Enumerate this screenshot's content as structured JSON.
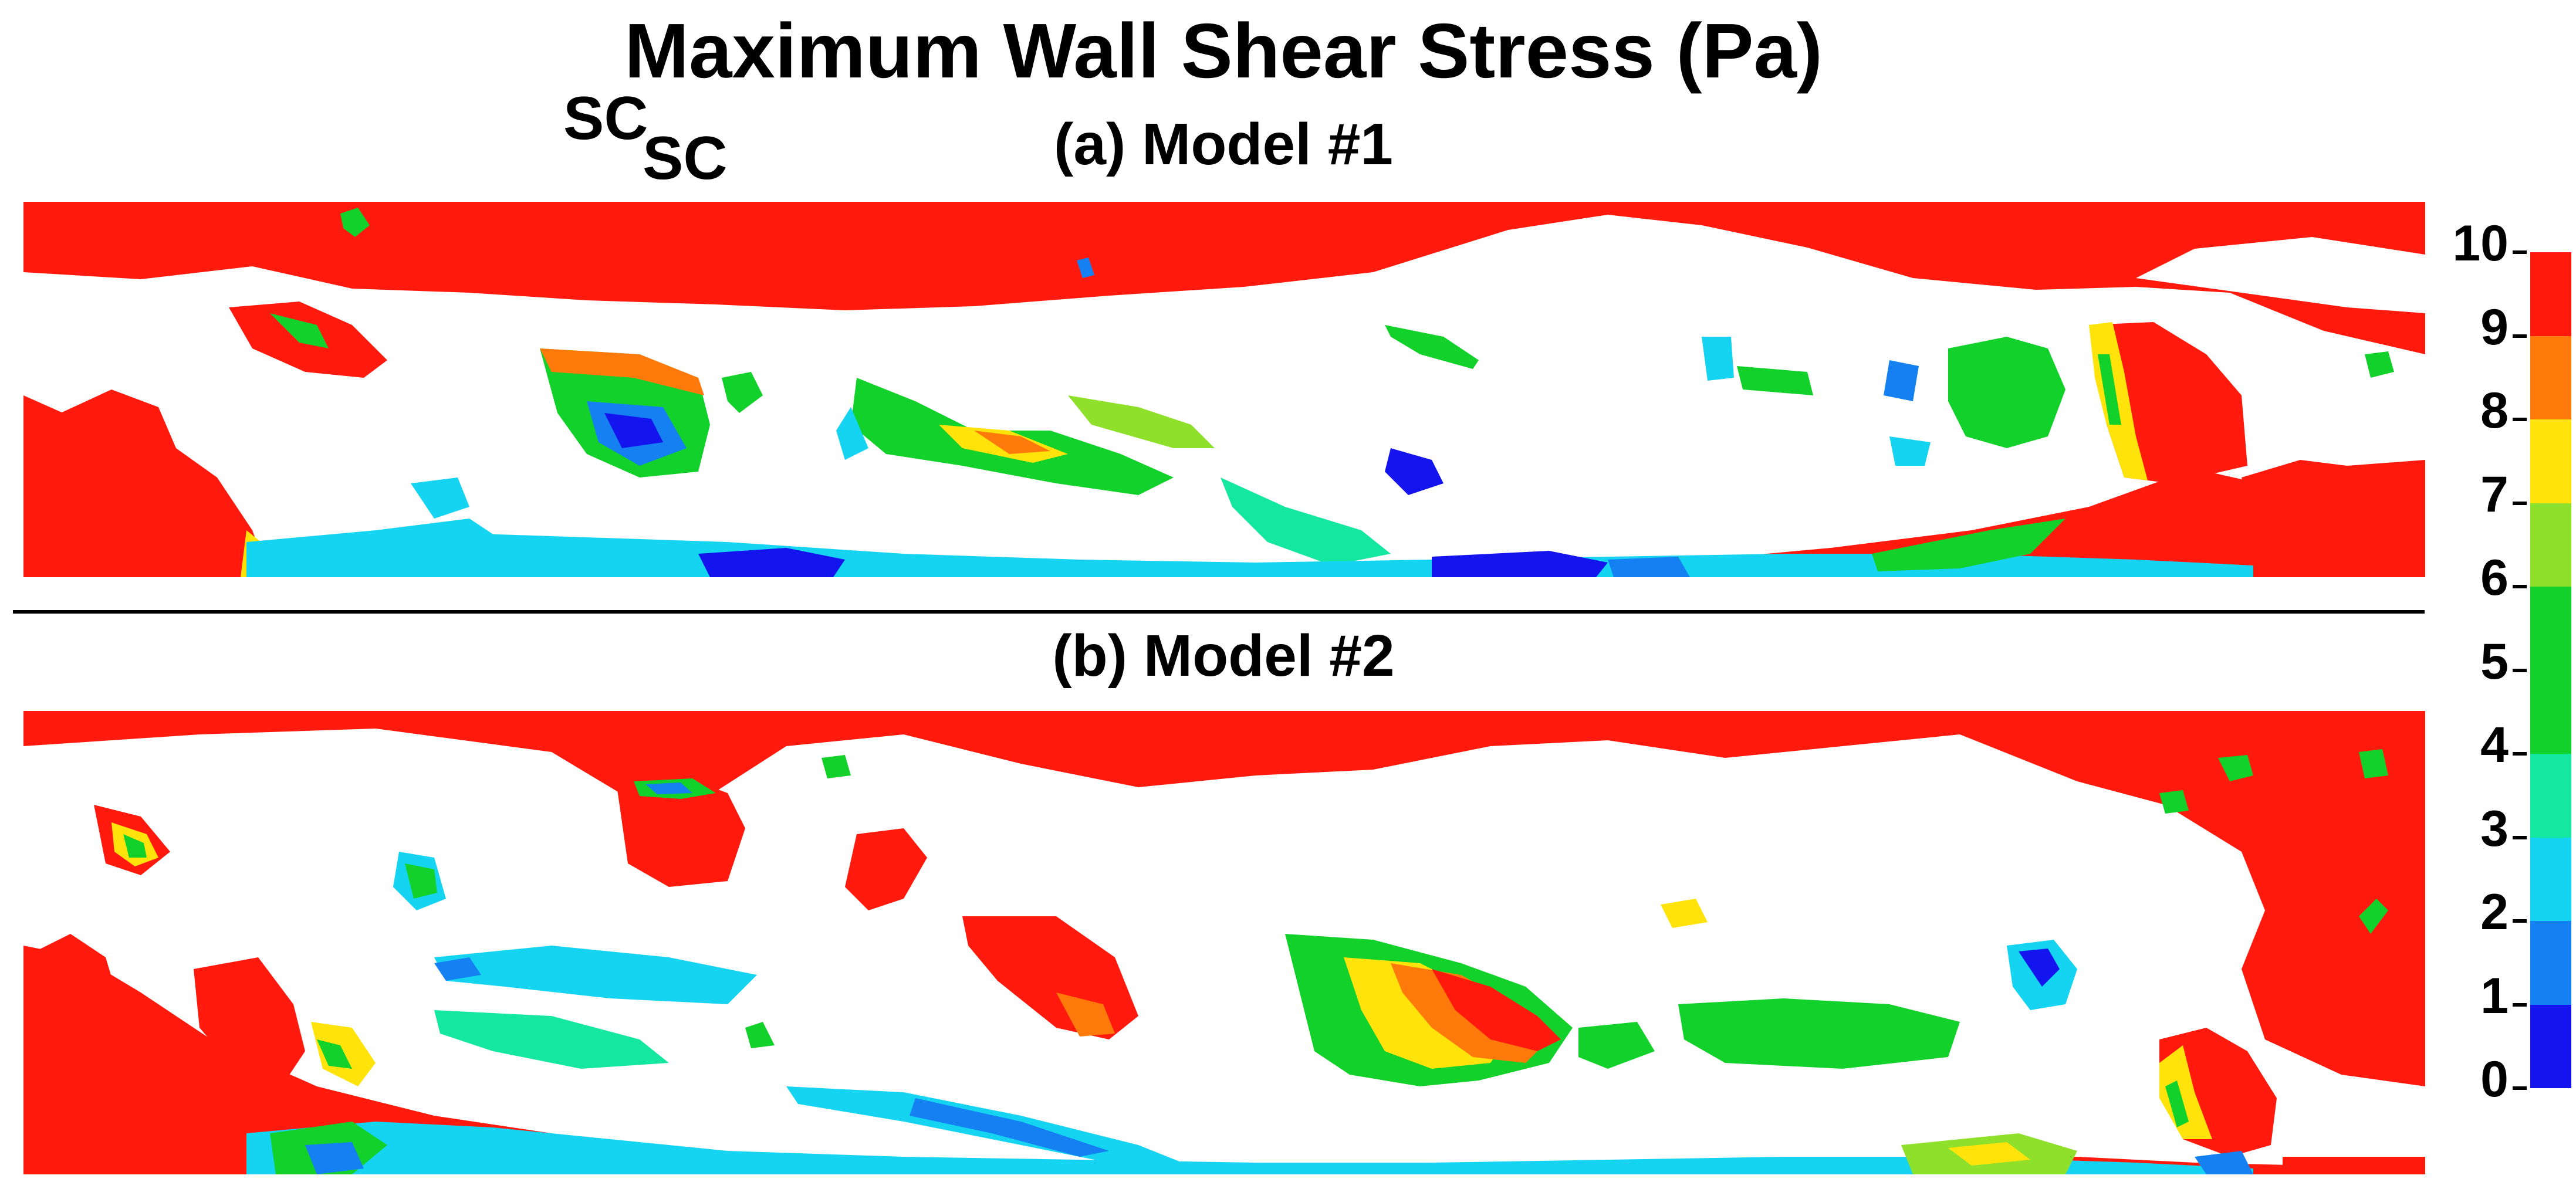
{
  "title": "Maximum Wall Shear Stress (Pa)",
  "panels": [
    {
      "label": "(a) Model #1",
      "marker": "SC"
    },
    {
      "label": "(b) Model #2",
      "marker": "SC"
    }
  ],
  "colorbar": {
    "min": 0,
    "max": 10,
    "tick_labels": [
      "10",
      "9",
      "8",
      "7",
      "6",
      "5",
      "4",
      "3",
      "2",
      "1",
      "0"
    ],
    "bands_top_to_bottom": [
      {
        "range": [
          9,
          10
        ],
        "color": "#ff1a0d"
      },
      {
        "range": [
          8,
          9
        ],
        "color": "#ff7a0a"
      },
      {
        "range": [
          7,
          8
        ],
        "color": "#ffe30a"
      },
      {
        "range": [
          6,
          7
        ],
        "color": "#8fe02a"
      },
      {
        "range": [
          4,
          6
        ],
        "color": "#12d12a"
      },
      {
        "range": [
          3,
          4
        ],
        "color": "#14e8a0"
      },
      {
        "range": [
          2,
          3
        ],
        "color": "#14d4f2"
      },
      {
        "range": [
          1,
          2
        ],
        "color": "#1480f2"
      },
      {
        "range": [
          0,
          1
        ],
        "color": "#1414ee"
      }
    ]
  },
  "colors": {
    "pore_space": "#ffffff",
    "high_stress": "#ff1a0d",
    "text": "#000000"
  }
}
